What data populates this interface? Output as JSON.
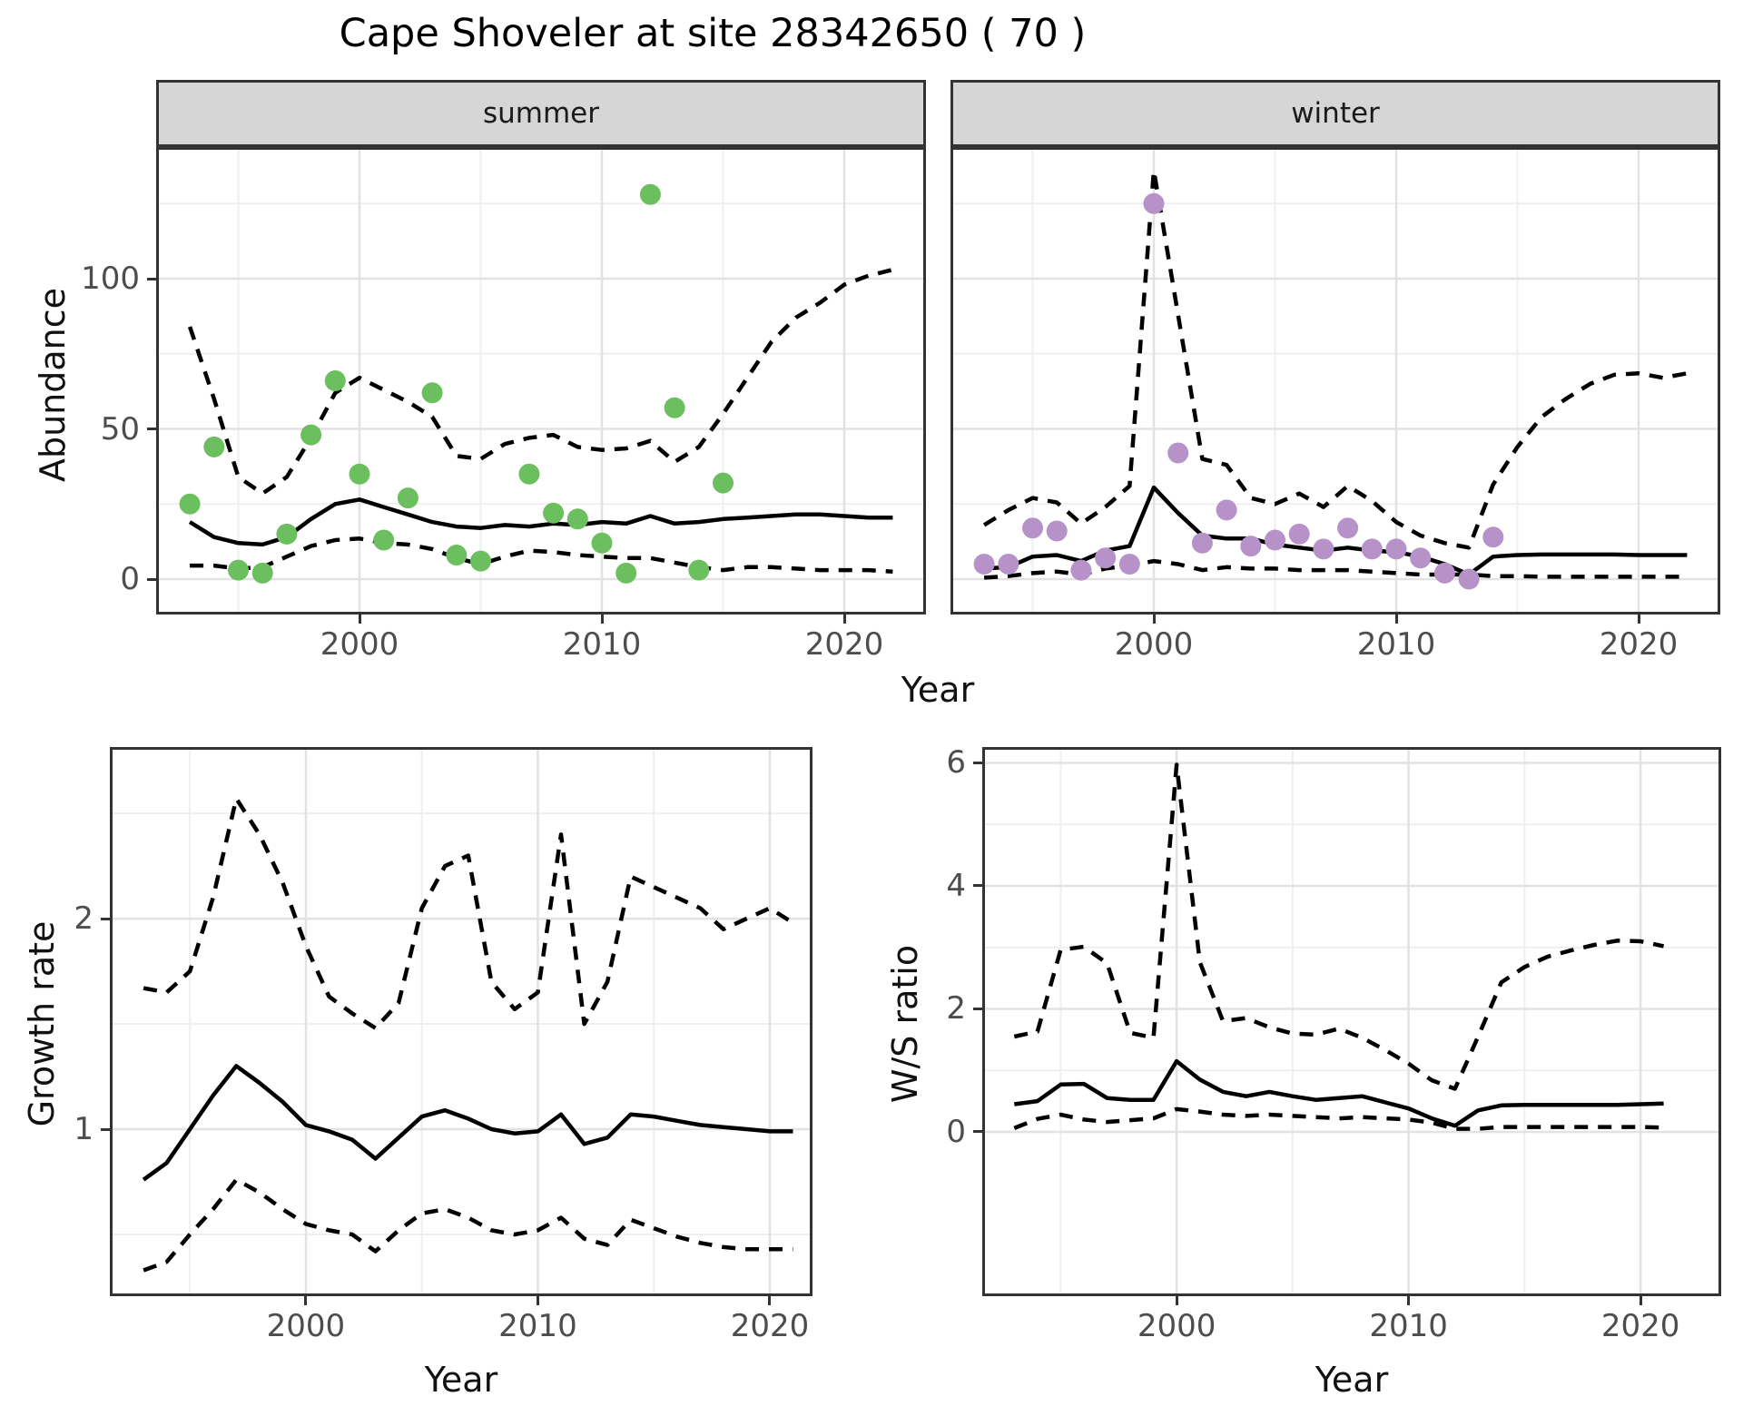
{
  "title": "Cape Shoveler at site 28342650 ( 70 )",
  "colors": {
    "summer_dot": "#6cbf5e",
    "winter_dot": "#b692c8",
    "line": "#000000",
    "panel_border": "#333333",
    "strip_bg": "#d6d6d6",
    "grid_major": "#e2e2e2",
    "grid_minor": "#efefef",
    "tick_text": "#4d4d4d"
  },
  "chart_data": [
    {
      "id": "summer",
      "type": "line",
      "facet_label": "summer",
      "xlabel": "Year",
      "ylabel": "Abundance",
      "legend_position": "none",
      "grid": true,
      "xlim": [
        1991.61,
        2023.37
      ],
      "ylim": [
        -11.78,
        143.81
      ],
      "x_major_ticks": [
        2000,
        2010,
        2020
      ],
      "x_minor_ticks": [
        1995,
        2005,
        2015
      ],
      "y_major_ticks": [
        0,
        50,
        100
      ],
      "y_minor_ticks": [
        25,
        75,
        125
      ],
      "show_y_labels": true,
      "point_color_key": "summer_dot",
      "years": [
        1993,
        1994,
        1995,
        1996,
        1997,
        1998,
        1999,
        2000,
        2001,
        2002,
        2003,
        2004,
        2005,
        2006,
        2007,
        2008,
        2009,
        2010,
        2011,
        2012,
        2013,
        2014,
        2015,
        2016,
        2017,
        2018,
        2019,
        2020,
        2021,
        2022
      ],
      "series": [
        {
          "name": "estimate",
          "style": "solid",
          "values": [
            19,
            14,
            12,
            11.5,
            14,
            20,
            25,
            26.5,
            24,
            21.5,
            19,
            17.5,
            17,
            18,
            17.5,
            18.5,
            18,
            19,
            18.5,
            21,
            18.5,
            19,
            20,
            20.5,
            21,
            21.5,
            21.5,
            21,
            20.5,
            20.5
          ]
        },
        {
          "name": "upper_ci",
          "style": "dashed",
          "values": [
            84,
            60,
            34,
            28.5,
            34,
            47,
            62,
            67,
            63,
            59,
            54,
            41,
            40,
            45,
            47,
            48,
            44,
            43,
            43.5,
            46,
            39,
            44,
            55,
            67,
            79,
            87,
            92,
            98,
            101,
            103
          ]
        },
        {
          "name": "lower_ci",
          "style": "dashed",
          "values": [
            4.5,
            4.5,
            3.5,
            4,
            7.5,
            11,
            13,
            13.5,
            12,
            11.5,
            10,
            7,
            5,
            7.5,
            9.5,
            9,
            8,
            7.5,
            7,
            7,
            5.5,
            4,
            3,
            4,
            4,
            3.5,
            3,
            3,
            3,
            2.5
          ]
        }
      ],
      "points": [
        [
          1993,
          25
        ],
        [
          1994,
          44
        ],
        [
          1995,
          3
        ],
        [
          1996,
          2
        ],
        [
          1997,
          15
        ],
        [
          1998,
          48
        ],
        [
          1999,
          66
        ],
        [
          2000,
          35
        ],
        [
          2001,
          13
        ],
        [
          2002,
          27
        ],
        [
          2003,
          62
        ],
        [
          2004,
          8
        ],
        [
          2005,
          6
        ],
        [
          2007,
          35
        ],
        [
          2008,
          22
        ],
        [
          2009,
          20
        ],
        [
          2010,
          12
        ],
        [
          2011,
          2
        ],
        [
          2012,
          128
        ],
        [
          2013,
          57
        ],
        [
          2014,
          3
        ],
        [
          2015,
          32
        ]
      ]
    },
    {
      "id": "winter",
      "type": "line",
      "facet_label": "winter",
      "xlabel": "Year",
      "ylabel": "Abundance",
      "legend_position": "none",
      "grid": true,
      "xlim": [
        1991.61,
        2023.37
      ],
      "ylim": [
        -11.78,
        143.81
      ],
      "x_major_ticks": [
        2000,
        2010,
        2020
      ],
      "x_minor_ticks": [
        1995,
        2005,
        2015
      ],
      "y_major_ticks": [
        0,
        50,
        100
      ],
      "y_minor_ticks": [
        25,
        75,
        125
      ],
      "show_y_labels": false,
      "point_color_key": "winter_dot",
      "years": [
        1993,
        1994,
        1995,
        1996,
        1997,
        1998,
        1999,
        2000,
        2001,
        2002,
        2003,
        2004,
        2005,
        2006,
        2007,
        2008,
        2009,
        2010,
        2011,
        2012,
        2013,
        2014,
        2015,
        2016,
        2017,
        2018,
        2019,
        2020,
        2021,
        2022
      ],
      "series": [
        {
          "name": "estimate",
          "style": "solid",
          "values": [
            3.5,
            4,
            7.5,
            8,
            6,
            9.5,
            11,
            30.5,
            22,
            14.5,
            13.5,
            13.5,
            11.5,
            10.5,
            9.5,
            10.5,
            9.5,
            9,
            7.5,
            5,
            1.5,
            7.5,
            8,
            8.2,
            8.2,
            8.2,
            8.2,
            8,
            8,
            8
          ]
        },
        {
          "name": "upper_ci",
          "style": "dashed",
          "values": [
            18,
            23,
            27,
            25.5,
            18.5,
            24,
            31,
            136,
            88,
            40,
            38,
            27,
            25,
            28.5,
            24,
            31,
            26,
            19,
            14.5,
            12,
            10.5,
            31.5,
            44,
            54,
            60,
            65,
            68,
            68.5,
            67,
            68.5
          ]
        },
        {
          "name": "lower_ci",
          "style": "dashed",
          "values": [
            0.5,
            1,
            2,
            2.5,
            1.5,
            3.5,
            4.5,
            6,
            5,
            3,
            4,
            3.5,
            3.5,
            3,
            3,
            3,
            2.5,
            2,
            1.5,
            1.5,
            1.5,
            1,
            1,
            0.8,
            0.8,
            0.8,
            0.8,
            0.8,
            0.8,
            0.8
          ]
        }
      ],
      "points": [
        [
          1993,
          5
        ],
        [
          1994,
          5
        ],
        [
          1995,
          17
        ],
        [
          1996,
          16
        ],
        [
          1997,
          3
        ],
        [
          1998,
          7
        ],
        [
          1999,
          5
        ],
        [
          2000,
          125
        ],
        [
          2001,
          42
        ],
        [
          2002,
          12
        ],
        [
          2003,
          23
        ],
        [
          2004,
          11
        ],
        [
          2005,
          13
        ],
        [
          2006,
          15
        ],
        [
          2007,
          10
        ],
        [
          2008,
          17
        ],
        [
          2009,
          10
        ],
        [
          2010,
          10
        ],
        [
          2011,
          7
        ],
        [
          2012,
          2
        ],
        [
          2013,
          0
        ],
        [
          2014,
          14
        ]
      ]
    },
    {
      "id": "growth",
      "type": "line",
      "facet_label": "",
      "xlabel": "Year",
      "ylabel": "Growth rate",
      "legend_position": "none",
      "grid": true,
      "xlim": [
        1991.55,
        2021.84
      ],
      "ylim": [
        0.207,
        2.815
      ],
      "x_major_ticks": [
        2000,
        2010,
        2020
      ],
      "x_minor_ticks": [
        1995,
        2005,
        2015
      ],
      "y_major_ticks": [
        1,
        2
      ],
      "y_minor_ticks": [
        0.5,
        1.5,
        2.5
      ],
      "show_y_labels": true,
      "point_color_key": "",
      "years": [
        1993,
        1994,
        1995,
        1996,
        1997,
        1998,
        1999,
        2000,
        2001,
        2002,
        2003,
        2004,
        2005,
        2006,
        2007,
        2008,
        2009,
        2010,
        2011,
        2012,
        2013,
        2014,
        2015,
        2016,
        2017,
        2018,
        2019,
        2020,
        2021
      ],
      "series": [
        {
          "name": "estimate",
          "style": "solid",
          "values": [
            0.76,
            0.84,
            1.0,
            1.16,
            1.3,
            1.22,
            1.13,
            1.02,
            0.99,
            0.95,
            0.86,
            0.96,
            1.06,
            1.09,
            1.05,
            1.0,
            0.98,
            0.99,
            1.07,
            0.93,
            0.96,
            1.07,
            1.06,
            1.04,
            1.02,
            1.01,
            1.0,
            0.99,
            0.99
          ]
        },
        {
          "name": "upper_ci",
          "style": "dashed",
          "values": [
            1.67,
            1.65,
            1.75,
            2.1,
            2.57,
            2.4,
            2.17,
            1.87,
            1.63,
            1.55,
            1.48,
            1.6,
            2.05,
            2.25,
            2.3,
            1.7,
            1.57,
            1.65,
            2.4,
            1.5,
            1.7,
            2.2,
            2.15,
            2.1,
            2.05,
            1.95,
            2.0,
            2.05,
            1.98
          ]
        },
        {
          "name": "lower_ci",
          "style": "dashed",
          "values": [
            0.33,
            0.37,
            0.5,
            0.62,
            0.76,
            0.7,
            0.62,
            0.55,
            0.52,
            0.5,
            0.42,
            0.52,
            0.6,
            0.62,
            0.58,
            0.52,
            0.5,
            0.52,
            0.58,
            0.48,
            0.45,
            0.57,
            0.53,
            0.49,
            0.46,
            0.44,
            0.43,
            0.43,
            0.43
          ]
        }
      ],
      "points": []
    },
    {
      "id": "ws",
      "type": "line",
      "facet_label": "",
      "xlabel": "Year",
      "ylabel": "W/S ratio",
      "legend_position": "none",
      "grid": true,
      "xlim": [
        1991.62,
        2023.48
      ],
      "ylim": [
        -2.672,
        6.258
      ],
      "x_major_ticks": [
        2000,
        2010,
        2020
      ],
      "x_minor_ticks": [
        1995,
        2005,
        2015
      ],
      "y_major_ticks": [
        0,
        2,
        4,
        6
      ],
      "y_minor_ticks": [
        1,
        3,
        5
      ],
      "show_y_labels": true,
      "point_color_key": "",
      "years": [
        1993,
        1994,
        1995,
        1996,
        1997,
        1998,
        1999,
        2000,
        2001,
        2002,
        2003,
        2004,
        2005,
        2006,
        2007,
        2008,
        2009,
        2010,
        2011,
        2012,
        2013,
        2014,
        2015,
        2016,
        2017,
        2018,
        2019,
        2020,
        2021
      ],
      "series": [
        {
          "name": "estimate",
          "style": "solid",
          "values": [
            0.45,
            0.5,
            0.77,
            0.78,
            0.55,
            0.52,
            0.52,
            1.15,
            0.85,
            0.65,
            0.58,
            0.65,
            0.58,
            0.52,
            0.55,
            0.58,
            0.48,
            0.38,
            0.22,
            0.1,
            0.35,
            0.43,
            0.44,
            0.44,
            0.44,
            0.44,
            0.44,
            0.45,
            0.46
          ]
        },
        {
          "name": "upper_ci",
          "style": "dashed",
          "values": [
            1.55,
            1.63,
            2.96,
            3.01,
            2.74,
            1.61,
            1.53,
            5.97,
            2.76,
            1.8,
            1.85,
            1.7,
            1.6,
            1.58,
            1.68,
            1.53,
            1.33,
            1.11,
            0.84,
            0.7,
            1.55,
            2.43,
            2.68,
            2.85,
            2.95,
            3.04,
            3.11,
            3.1,
            3.02
          ]
        },
        {
          "name": "lower_ci",
          "style": "dashed",
          "values": [
            0.06,
            0.21,
            0.28,
            0.2,
            0.16,
            0.19,
            0.22,
            0.37,
            0.33,
            0.28,
            0.26,
            0.28,
            0.26,
            0.24,
            0.22,
            0.24,
            0.22,
            0.2,
            0.15,
            0.05,
            0.05,
            0.08,
            0.08,
            0.08,
            0.08,
            0.08,
            0.08,
            0.08,
            0.07
          ]
        }
      ],
      "points": []
    }
  ]
}
